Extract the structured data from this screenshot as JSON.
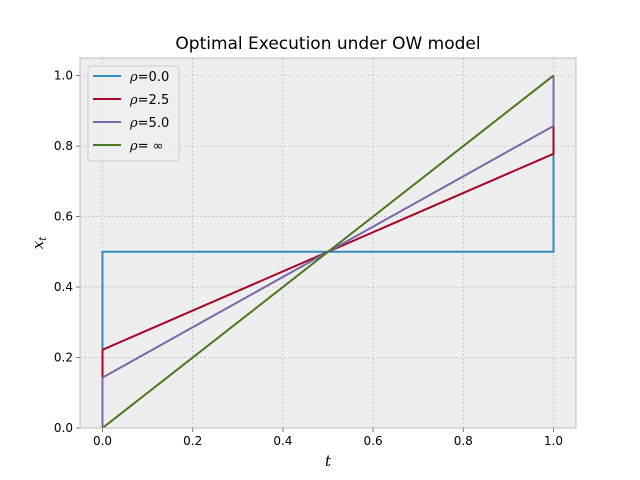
{
  "chart_data": {
    "type": "line",
    "title": "Optimal Execution under OW model",
    "xlabel": "t",
    "ylabel": "x",
    "ylabel_sub": "t",
    "xlim": [
      -0.05,
      1.05
    ],
    "ylim": [
      0.0,
      1.05
    ],
    "xticks": [
      "0.0",
      "0.2",
      "0.4",
      "0.6",
      "0.8",
      "1.0"
    ],
    "xtick_values": [
      0.0,
      0.2,
      0.4,
      0.6,
      0.8,
      1.0
    ],
    "yticks": [
      "0.0",
      "0.2",
      "0.4",
      "0.6",
      "0.8",
      "1.0"
    ],
    "ytick_values": [
      0.0,
      0.2,
      0.4,
      0.6,
      0.8,
      1.0
    ],
    "grid": true,
    "legend_position": "top-left",
    "series": [
      {
        "name_symbol": "ρ",
        "name_value": "=0.0",
        "color": "#348abd",
        "x": [
          0.0,
          0.0,
          1.0,
          1.0
        ],
        "y": [
          0.0,
          0.5,
          0.5,
          1.0
        ]
      },
      {
        "name_symbol": "ρ",
        "name_value": "=2.5",
        "color": "#a60628",
        "x": [
          0.0,
          0.0,
          1.0,
          1.0
        ],
        "y": [
          0.0,
          0.222,
          0.778,
          1.0
        ]
      },
      {
        "name_symbol": "ρ",
        "name_value": "=5.0",
        "color": "#7a68a6",
        "x": [
          0.0,
          0.0,
          1.0,
          1.0
        ],
        "y": [
          0.0,
          0.143,
          0.857,
          1.0
        ]
      },
      {
        "name_symbol": "ρ",
        "name_value": "= ∞",
        "color": "#467821",
        "x": [
          0.0,
          1.0
        ],
        "y": [
          0.0,
          1.0
        ]
      }
    ]
  }
}
